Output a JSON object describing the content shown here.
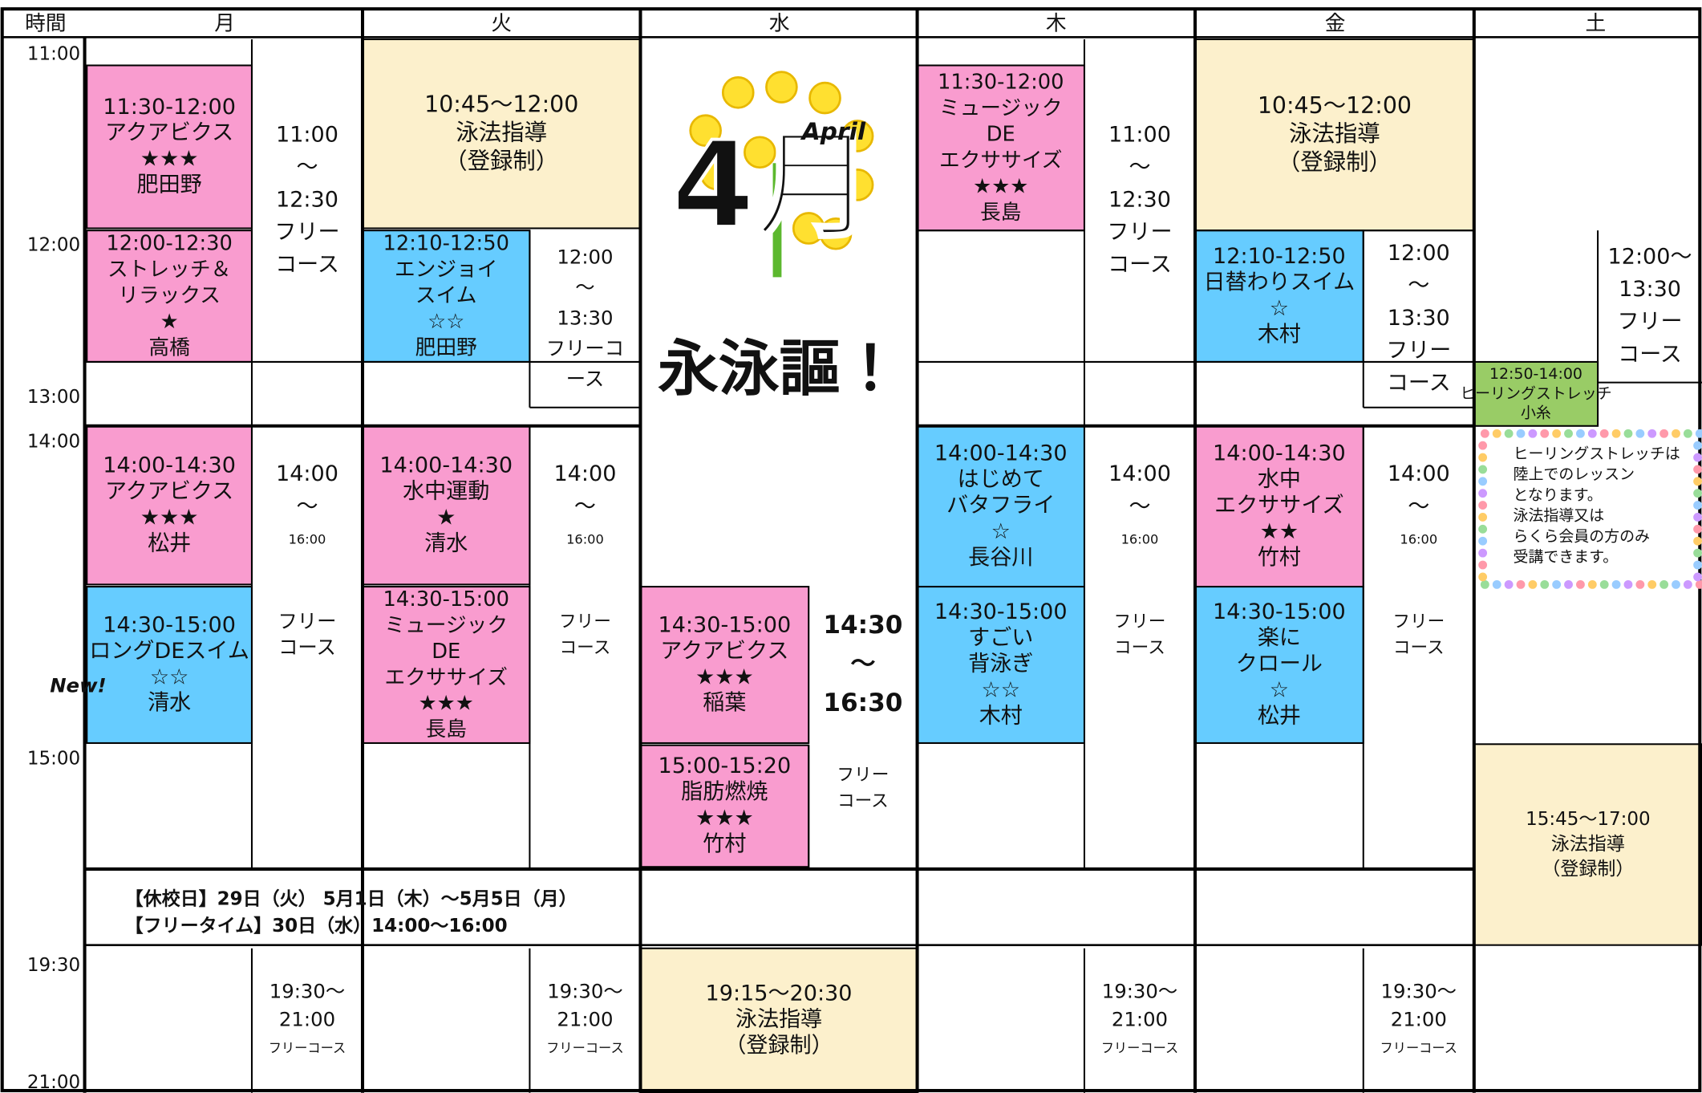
{
  "header": {
    "time": "時間",
    "days": [
      "月",
      "火",
      "水",
      "木",
      "金",
      "土"
    ]
  },
  "times": [
    "11:00",
    "12:00",
    "13:00",
    "14:00",
    "15:00",
    "19:30",
    "21:00"
  ],
  "month": {
    "kanji": "4月",
    "english": "April",
    "slogan": "永泳謳！"
  },
  "new_badge": "New!",
  "lessons": [
    {
      "lines": [
        "11:30-12:00",
        "アクアビクス",
        "★★★",
        "肥田野"
      ]
    },
    {
      "lines": [
        "12:00-12:30",
        "ストレッチ＆",
        "リラックス",
        "★",
        "高橋"
      ]
    },
    {
      "lines": [
        "14:00-14:30",
        "アクアビクス",
        "★★★",
        "松井"
      ]
    },
    {
      "lines": [
        "14:30-15:00",
        "ロングDEスイム",
        "☆☆",
        "清水"
      ]
    },
    {
      "lines": [
        "10:45〜12:00",
        "泳法指導",
        "（登録制）"
      ]
    },
    {
      "lines": [
        "12:10-12:50",
        "エンジョイ",
        "スイム",
        "☆☆",
        "肥田野"
      ]
    },
    {
      "lines": [
        "14:00-14:30",
        "水中運動",
        "★",
        "清水"
      ]
    },
    {
      "lines": [
        "14:30-15:00",
        "ミュージック",
        "DE",
        "エクササイズ",
        "★★★",
        "長島"
      ]
    },
    {
      "lines": [
        "14:30-15:00",
        "アクアビクス",
        "★★★",
        "稲葉"
      ]
    },
    {
      "lines": [
        "15:00-15:20",
        "脂肪燃焼",
        "★★★",
        "竹村"
      ]
    },
    {
      "lines": [
        "19:15〜20:30",
        "泳法指導",
        "（登録制）"
      ]
    },
    {
      "lines": [
        "14:30",
        "〜",
        "16:30"
      ]
    },
    {
      "lines": [
        "11:30-12:00",
        "ミュージック",
        "DE",
        "エクササイズ",
        "★★★",
        "長島"
      ]
    },
    {
      "lines": [
        "14:00-14:30",
        "はじめて",
        "バタフライ",
        "☆",
        "長谷川"
      ]
    },
    {
      "lines": [
        "14:30-15:00",
        "すごい",
        "背泳ぎ",
        "☆☆",
        "木村"
      ]
    },
    {
      "lines": [
        "10:45〜12:00",
        "泳法指導",
        "（登録制）"
      ]
    },
    {
      "lines": [
        "12:10-12:50",
        "日替わりスイム",
        "☆",
        "木村"
      ]
    },
    {
      "lines": [
        "14:00-14:30",
        "水中",
        "エクササイズ",
        "★★",
        "竹村"
      ]
    },
    {
      "lines": [
        "14:30-15:00",
        "楽に",
        "クロール",
        "☆",
        "松井"
      ]
    },
    {
      "lines": [
        "12:50-14:00",
        "ヒーリングストレッチ",
        "小糸"
      ]
    },
    {
      "lines": [
        "15:45〜17:00",
        "泳法指導",
        "（登録制）"
      ]
    }
  ],
  "free": [
    {
      "lines": [
        "11:00",
        "〜",
        "12:30",
        "フリー",
        "コース"
      ]
    },
    {
      "lines": [
        "14:00",
        "〜",
        "16:00"
      ]
    },
    {
      "lines": [
        "フリー",
        "コース"
      ]
    },
    {
      "lines": [
        "19:30〜",
        "21:00",
        "フリーコース"
      ]
    },
    {
      "lines": [
        "12:00",
        "〜",
        "13:30",
        "フリーコ",
        "ース"
      ]
    },
    {
      "lines": [
        "14:00",
        "〜",
        "16:00"
      ]
    },
    {
      "lines": [
        "フリー",
        "コース"
      ]
    },
    {
      "lines": [
        "19:30〜",
        "21:00",
        "フリーコース"
      ]
    },
    {
      "lines": [
        "フリー",
        "コース"
      ]
    },
    {
      "lines": [
        "11:00",
        "〜",
        "12:30",
        "フリー",
        "コース"
      ]
    },
    {
      "lines": [
        "14:00",
        "〜",
        "16:00"
      ]
    },
    {
      "lines": [
        "フリー",
        "コース"
      ]
    },
    {
      "lines": [
        "19:30〜",
        "21:00",
        "フリーコース"
      ]
    },
    {
      "lines": [
        "12:00",
        "〜",
        "13:30",
        "フリー",
        "コース"
      ]
    },
    {
      "lines": [
        "14:00",
        "〜",
        "16:00"
      ]
    },
    {
      "lines": [
        "フリー",
        "コース"
      ]
    },
    {
      "lines": [
        "19:30〜",
        "21:00",
        "フリーコース"
      ]
    },
    {
      "lines": [
        "12:00〜",
        "13:30",
        "フリー",
        "コース"
      ]
    }
  ],
  "notes": {
    "closed": "【休校日】29日（火） 5月1日（木）〜5月5日（月）",
    "freetime": "【フリータイム】30日（水）14:00〜16:00"
  },
  "side_note": [
    "ヒーリングストレッチは",
    "陸上でのレッスン",
    "となります。",
    "泳法指導又は",
    "らくら会員の方のみ",
    "受講できます。"
  ]
}
